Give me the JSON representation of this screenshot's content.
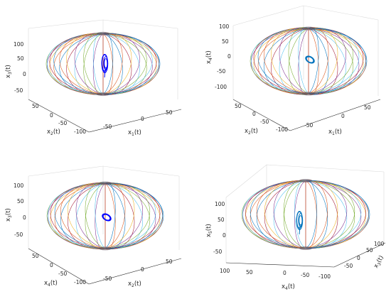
{
  "chart_data": [
    {
      "type": "line",
      "subtype": "3d-phase-portrait",
      "panel_position": "top-left",
      "x_axis": {
        "label": "x1(t)",
        "ticks": [
          "-50",
          "0",
          "50"
        ],
        "range": [
          -100,
          100
        ]
      },
      "y_axis": {
        "label": "x2(t)",
        "ticks": [
          "-100",
          "-50",
          "0",
          "50"
        ],
        "range": [
          -100,
          100
        ]
      },
      "z_axis": {
        "label": "x3(t)",
        "ticks": [
          "-50",
          "0",
          "50",
          "100"
        ],
        "range": [
          -100,
          100
        ]
      },
      "grid": true,
      "surface": "sphere of colored meridian curves, radius about 100",
      "trajectory": {
        "color": "#0000ff",
        "shape": "narrow tilted attractor near origin",
        "extent_z": [
          -10,
          35
        ]
      }
    },
    {
      "type": "line",
      "subtype": "3d-phase-portrait",
      "panel_position": "top-right",
      "x_axis": {
        "label": "x1(t)",
        "ticks": [
          "-50",
          "0",
          "50"
        ],
        "range": [
          -100,
          100
        ]
      },
      "y_axis": {
        "label": "x2(t)",
        "ticks": [
          "-100",
          "-50",
          "0",
          "50"
        ],
        "range": [
          -100,
          100
        ]
      },
      "z_axis": {
        "label": "x4(t)",
        "ticks": [
          "-100",
          "-50",
          "0",
          "50",
          "100"
        ],
        "range": [
          -100,
          100
        ]
      },
      "grid": true,
      "surface": "sphere of colored meridian curves, radius about 100",
      "trajectory": {
        "color": "#0072bd",
        "shape": "compact loop cluster near origin",
        "extent_z": [
          -10,
          15
        ]
      }
    },
    {
      "type": "line",
      "subtype": "3d-phase-portrait",
      "panel_position": "bottom-left",
      "x_axis": {
        "label": "x2(t)",
        "ticks": [
          "-50",
          "0",
          "50"
        ],
        "range": [
          -100,
          100
        ]
      },
      "y_axis": {
        "label": "x4(t)",
        "ticks": [
          "-100",
          "-50",
          "0",
          "50"
        ],
        "range": [
          -100,
          100
        ]
      },
      "z_axis": {
        "label": "x3(t)",
        "ticks": [
          "-50",
          "0",
          "50",
          "100"
        ],
        "range": [
          -100,
          100
        ]
      },
      "grid": true,
      "surface": "sphere of colored meridian curves, radius about 100",
      "trajectory": {
        "color": "#0000ff",
        "shape": "compact loop cluster near origin",
        "extent_z": [
          -5,
          10
        ]
      }
    },
    {
      "type": "line",
      "subtype": "3d-phase-portrait",
      "panel_position": "bottom-right",
      "x_axis": {
        "label": "x3(t)",
        "ticks": [
          "-100",
          "-50",
          "0",
          "50",
          "100"
        ],
        "range": [
          -100,
          100
        ]
      },
      "y_axis": {
        "label": "x4(t)",
        "ticks": [
          "-50",
          "0",
          "50",
          "100"
        ],
        "range": [
          -100,
          100
        ]
      },
      "z_axis": {
        "label": "x5(t)",
        "ticks": [
          "-50",
          "0",
          "50",
          "100"
        ],
        "range": [
          -100,
          100
        ]
      },
      "grid": true,
      "surface": "sphere of colored meridian curves, radius about 100",
      "trajectory": {
        "color": "#0072bd",
        "shape": "narrow vertical attractor near origin",
        "extent_z": [
          -5,
          30
        ]
      }
    }
  ],
  "meridian_colors": [
    "#0072bd",
    "#d95319",
    "#edb120",
    "#7e2f8e",
    "#77ac30",
    "#4dbeee",
    "#a2142f"
  ]
}
